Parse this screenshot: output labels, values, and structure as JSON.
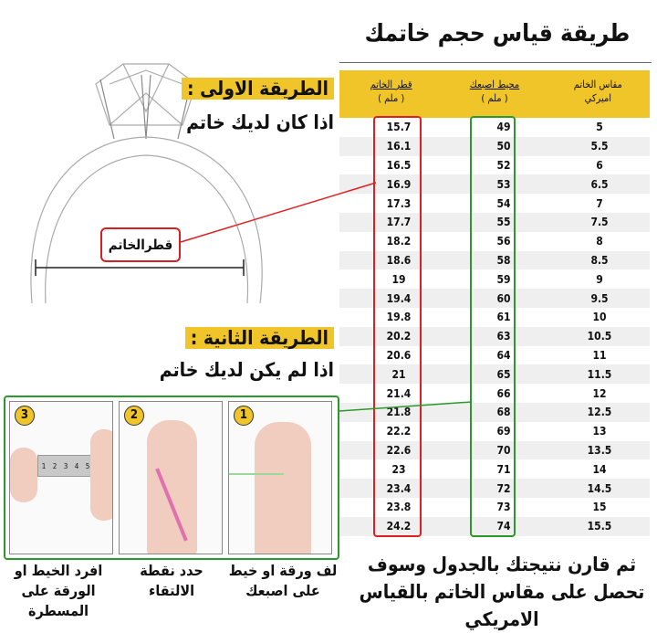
{
  "title": "طريقة قياس حجم خاتمك",
  "table": {
    "headers": [
      {
        "line1": "قطر الخاتم",
        "line2": "( ملم )"
      },
      {
        "line1": "محيط اصبعك",
        "line2": "( ملم )"
      },
      {
        "line1": "مقاس الخاتم",
        "line2": "اميركي"
      }
    ],
    "rows": [
      [
        "15.7",
        "49",
        "5"
      ],
      [
        "16.1",
        "50",
        "5.5"
      ],
      [
        "16.5",
        "52",
        "6"
      ],
      [
        "16.9",
        "53",
        "6.5"
      ],
      [
        "17.3",
        "54",
        "7"
      ],
      [
        "17.7",
        "55",
        "7.5"
      ],
      [
        "18.2",
        "56",
        "8"
      ],
      [
        "18.6",
        "58",
        "8.5"
      ],
      [
        "19",
        "59",
        "9"
      ],
      [
        "19.4",
        "60",
        "9.5"
      ],
      [
        "19.8",
        "61",
        "10"
      ],
      [
        "20.2",
        "63",
        "10.5"
      ],
      [
        "20.6",
        "64",
        "11"
      ],
      [
        "21",
        "65",
        "11.5"
      ],
      [
        "21.4",
        "66",
        "12"
      ],
      [
        "21.8",
        "68",
        "12.5"
      ],
      [
        "22.2",
        "69",
        "13"
      ],
      [
        "22.6",
        "70",
        "13.5"
      ],
      [
        "23",
        "71",
        "14"
      ],
      [
        "23.4",
        "72",
        "14.5"
      ],
      [
        "23.8",
        "73",
        "15"
      ],
      [
        "24.2",
        "74",
        "15.5"
      ]
    ]
  },
  "method1": {
    "heading": "الطريقة الاولى :",
    "subtitle": "اذا كان لديك خاتم",
    "diameter_label": "قطرالخاتم"
  },
  "method2": {
    "heading": "الطريقة الثانية :",
    "subtitle": "اذا لم يكن لديك خاتم"
  },
  "steps": [
    {
      "number": "1",
      "caption": "لف ورقة او خيط على اصبعك"
    },
    {
      "number": "2",
      "caption": "حدد نقطة الالتقاء"
    },
    {
      "number": "3",
      "caption": "افرد الخيط او الورقة على المسطرة"
    }
  ],
  "ruler_ticks": [
    "1",
    "2",
    "3",
    "4",
    "5"
  ],
  "footer": "ثم قارن نتيجتك بالجدول وسوف تحصل على مقاس الخاتم بالقياس الامريكي",
  "colors": {
    "accent_yellow": "#f0c52a",
    "red": "#e02020",
    "green": "#2a9a2a"
  }
}
